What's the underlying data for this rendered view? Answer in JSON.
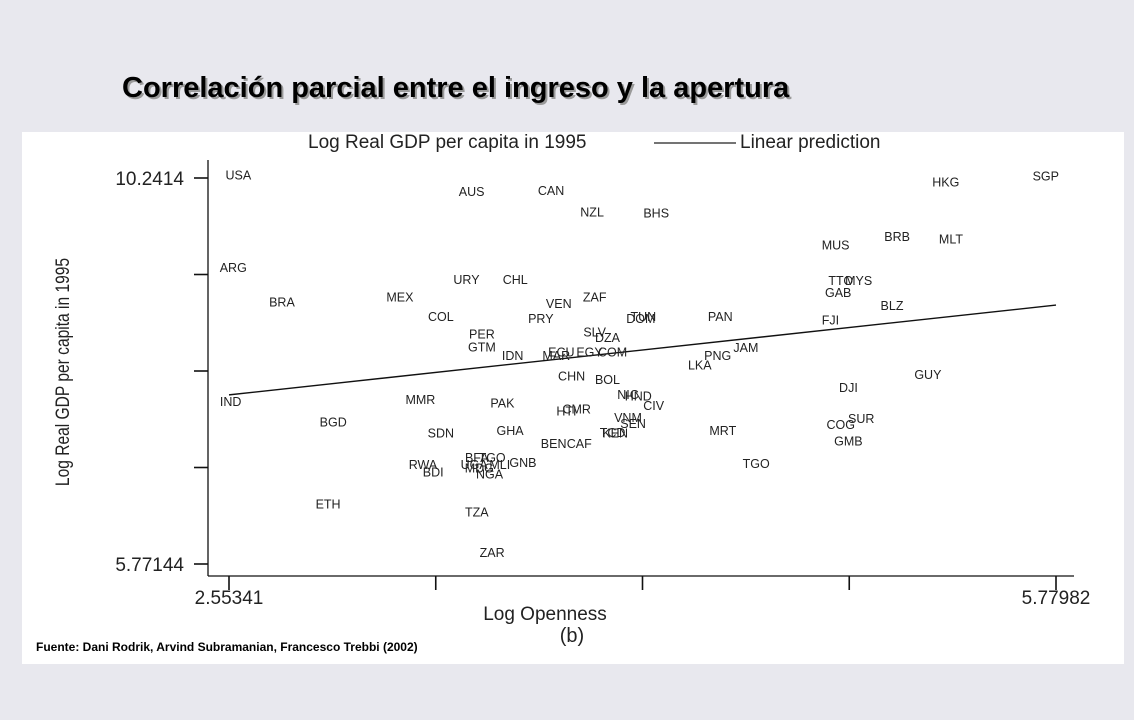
{
  "slide": {
    "title": "Correlación parcial entre el ingreso y la apertura",
    "source": "Fuente: Dani Rodrik, Arvind Subramanian, Francesco Trebbi (2002)"
  },
  "chart_data": {
    "type": "scatter",
    "legend": {
      "position": "top",
      "entries": [
        "Log Real GDP per capita in 1995",
        "Linear prediction"
      ]
    },
    "xlabel": "Log Openness",
    "ylabel": "Log Real GDP per capita in 1995",
    "caption": "(b)",
    "x_tick_labels": [
      "2.55341",
      "5.77982"
    ],
    "y_tick_labels": [
      "10.2414",
      "5.77144"
    ],
    "xlim": [
      2.55341,
      5.77982
    ],
    "ylim": [
      5.77144,
      10.2414
    ],
    "x_ticks": [
      2.55341,
      3.36,
      4.1666,
      4.9732,
      5.77982
    ],
    "y_ticks": [
      5.77144,
      6.8889,
      8.0064,
      9.1239,
      10.2414
    ],
    "grid": false,
    "fit_line": {
      "name": "Linear prediction",
      "x": [
        2.55341,
        5.77982
      ],
      "y": [
        7.73,
        8.77
      ]
    },
    "points": [
      {
        "label": "USA",
        "x": 2.59,
        "y": 10.27
      },
      {
        "label": "AUS",
        "x": 3.5,
        "y": 10.08
      },
      {
        "label": "CAN",
        "x": 3.81,
        "y": 10.09
      },
      {
        "label": "NZL",
        "x": 3.97,
        "y": 9.84
      },
      {
        "label": "BHS",
        "x": 4.22,
        "y": 9.83
      },
      {
        "label": "HKG",
        "x": 5.35,
        "y": 10.19
      },
      {
        "label": "SGP",
        "x": 5.74,
        "y": 10.26
      },
      {
        "label": "MUS",
        "x": 4.92,
        "y": 9.46
      },
      {
        "label": "BRB",
        "x": 5.16,
        "y": 9.56
      },
      {
        "label": "MLT",
        "x": 5.37,
        "y": 9.53
      },
      {
        "label": "ARG",
        "x": 2.57,
        "y": 9.2
      },
      {
        "label": "URY",
        "x": 3.48,
        "y": 9.06
      },
      {
        "label": "CHL",
        "x": 3.67,
        "y": 9.06
      },
      {
        "label": "TTO",
        "x": 4.94,
        "y": 9.05
      },
      {
        "label": "MYS",
        "x": 5.01,
        "y": 9.05
      },
      {
        "label": "GAB",
        "x": 4.93,
        "y": 8.91
      },
      {
        "label": "BRA",
        "x": 2.76,
        "y": 8.8
      },
      {
        "label": "MEX",
        "x": 3.22,
        "y": 8.86
      },
      {
        "label": "ZAF",
        "x": 3.98,
        "y": 8.86
      },
      {
        "label": "VEN",
        "x": 3.84,
        "y": 8.78
      },
      {
        "label": "BLZ",
        "x": 5.14,
        "y": 8.76
      },
      {
        "label": "COL",
        "x": 3.38,
        "y": 8.63
      },
      {
        "label": "PRY",
        "x": 3.77,
        "y": 8.61
      },
      {
        "label": "TUN",
        "x": 4.17,
        "y": 8.63
      },
      {
        "label": "DOM",
        "x": 4.16,
        "y": 8.61
      },
      {
        "label": "PAN",
        "x": 4.47,
        "y": 8.63
      },
      {
        "label": "FJI",
        "x": 4.9,
        "y": 8.59
      },
      {
        "label": "PER",
        "x": 3.54,
        "y": 8.43
      },
      {
        "label": "SLV",
        "x": 3.98,
        "y": 8.45
      },
      {
        "label": "DZA",
        "x": 4.03,
        "y": 8.39
      },
      {
        "label": "GTM",
        "x": 3.54,
        "y": 8.28
      },
      {
        "label": "JAM",
        "x": 4.57,
        "y": 8.27
      },
      {
        "label": "IDN",
        "x": 3.66,
        "y": 8.18
      },
      {
        "label": "MAR",
        "x": 3.83,
        "y": 8.18
      },
      {
        "label": "ECU",
        "x": 3.85,
        "y": 8.22
      },
      {
        "label": "EGY",
        "x": 3.96,
        "y": 8.22
      },
      {
        "label": "COM",
        "x": 4.05,
        "y": 8.22
      },
      {
        "label": "PNG",
        "x": 4.46,
        "y": 8.18
      },
      {
        "label": "LKA",
        "x": 4.39,
        "y": 8.07
      },
      {
        "label": "GUY",
        "x": 5.28,
        "y": 7.96
      },
      {
        "label": "CHN",
        "x": 3.89,
        "y": 7.94
      },
      {
        "label": "BOL",
        "x": 4.03,
        "y": 7.9
      },
      {
        "label": "DJI",
        "x": 4.97,
        "y": 7.81
      },
      {
        "label": "IND",
        "x": 2.56,
        "y": 7.65
      },
      {
        "label": "MMR",
        "x": 3.3,
        "y": 7.67
      },
      {
        "label": "PAK",
        "x": 3.62,
        "y": 7.63
      },
      {
        "label": "NIC",
        "x": 4.11,
        "y": 7.73
      },
      {
        "label": "HND",
        "x": 4.15,
        "y": 7.71
      },
      {
        "label": "CIV",
        "x": 4.21,
        "y": 7.6
      },
      {
        "label": "HTI",
        "x": 3.87,
        "y": 7.54
      },
      {
        "label": "CMR",
        "x": 3.91,
        "y": 7.56
      },
      {
        "label": "VNM",
        "x": 4.11,
        "y": 7.46
      },
      {
        "label": "BGD",
        "x": 2.96,
        "y": 7.41
      },
      {
        "label": "SEN",
        "x": 4.13,
        "y": 7.39
      },
      {
        "label": "SUR",
        "x": 5.02,
        "y": 7.45
      },
      {
        "label": "COG",
        "x": 4.94,
        "y": 7.38
      },
      {
        "label": "GHA",
        "x": 3.65,
        "y": 7.31
      },
      {
        "label": "KEN",
        "x": 4.06,
        "y": 7.28
      },
      {
        "label": "TCD",
        "x": 4.05,
        "y": 7.29
      },
      {
        "label": "MRT",
        "x": 4.48,
        "y": 7.31
      },
      {
        "label": "SDN",
        "x": 3.38,
        "y": 7.28
      },
      {
        "label": "BEN",
        "x": 3.82,
        "y": 7.16
      },
      {
        "label": "CAF",
        "x": 3.92,
        "y": 7.16
      },
      {
        "label": "GMB",
        "x": 4.97,
        "y": 7.19
      },
      {
        "label": "BFA",
        "x": 3.52,
        "y": 7.0
      },
      {
        "label": "TGO",
        "x": 3.58,
        "y": 7.0
      },
      {
        "label": "RWA",
        "x": 3.31,
        "y": 6.92
      },
      {
        "label": "UGA",
        "x": 3.51,
        "y": 6.92
      },
      {
        "label": "MLI",
        "x": 3.61,
        "y": 6.92
      },
      {
        "label": "GNB",
        "x": 3.7,
        "y": 6.94
      },
      {
        "label": "MDG",
        "x": 3.53,
        "y": 6.88
      },
      {
        "label": "BDI",
        "x": 3.35,
        "y": 6.83
      },
      {
        "label": "NGA",
        "x": 3.57,
        "y": 6.81
      },
      {
        "label": "TGO",
        "x": 4.61,
        "y": 6.93
      },
      {
        "label": "ETH",
        "x": 2.94,
        "y": 6.46
      },
      {
        "label": "TZA",
        "x": 3.52,
        "y": 6.37
      },
      {
        "label": "ZAR",
        "x": 3.58,
        "y": 5.9
      }
    ]
  }
}
